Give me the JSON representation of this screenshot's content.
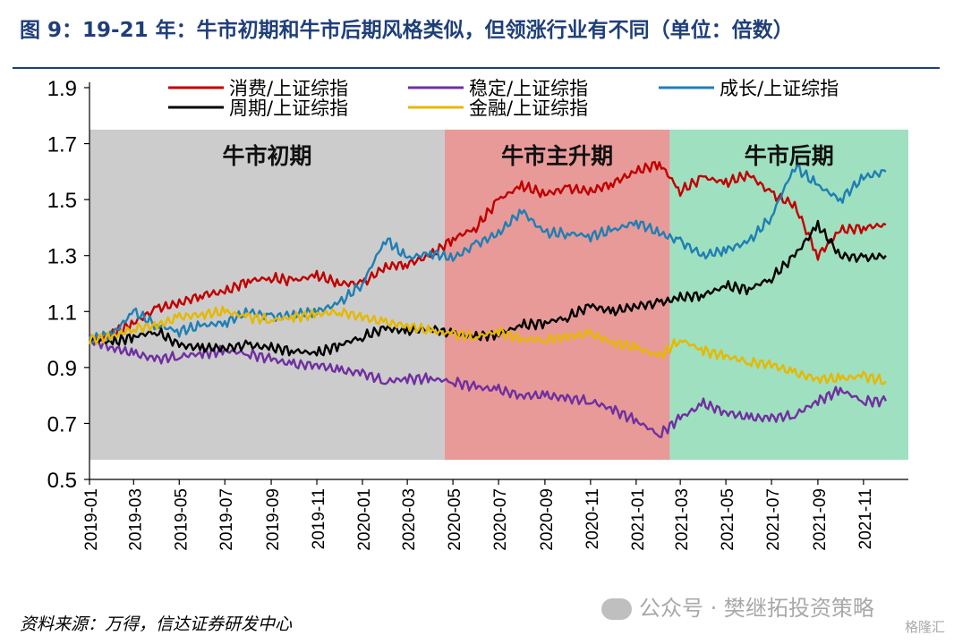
{
  "header": {
    "title": "图 9：19-21 年：牛市初期和牛市后期风格类似，但领涨行业有不同（单位：倍数）"
  },
  "footer": {
    "source": "资料来源：万得，信达证券研发中心",
    "watermark": "公众号 · 樊继拓投资策略",
    "corner_mark": "格隆汇"
  },
  "chart_data": {
    "type": "line",
    "title": "图 9：19-21 年：牛市初期和牛市后期风格类似，但领涨行业有不同（单位：倍数）",
    "xlabel": "",
    "ylabel": "",
    "x_range": [
      "2019-01",
      "2021-12"
    ],
    "ylim": [
      0.5,
      1.9
    ],
    "yticks": [
      "1.9",
      "1.7",
      "1.5",
      "1.3",
      "1.1",
      "0.9",
      "0.7",
      "0.5"
    ],
    "xticks": [
      "2019-01",
      "2019-03",
      "2019-05",
      "2019-07",
      "2019-09",
      "2019-11",
      "2020-01",
      "2020-03",
      "2020-05",
      "2020-07",
      "2020-09",
      "2020-11",
      "2021-01",
      "2021-03",
      "2021-05",
      "2021-07",
      "2021-09",
      "2021-11"
    ],
    "grid": false,
    "legend_position": "top",
    "phases": [
      {
        "label": "牛市初期",
        "start": "2019-01",
        "end": "2020-04-20",
        "ymin": 0.57,
        "ymax": 1.75,
        "color": "#cccccc"
      },
      {
        "label": "牛市主升期",
        "start": "2020-04-20",
        "end": "2021-02-15",
        "ymin": 0.57,
        "ymax": 1.75,
        "color": "#e89a98"
      },
      {
        "label": "牛市后期",
        "start": "2021-02-15",
        "end": "2021-12-31",
        "ymin": 0.57,
        "ymax": 1.75,
        "color": "#9fe0c0"
      }
    ],
    "series": [
      {
        "name": "消费/上证综指",
        "color": "#c00000",
        "x": [
          "2019-01",
          "2019-02",
          "2019-03",
          "2019-04",
          "2019-05",
          "2019-06",
          "2019-07",
          "2019-08",
          "2019-09",
          "2019-10",
          "2019-11",
          "2019-12",
          "2020-01",
          "2020-02",
          "2020-03",
          "2020-04",
          "2020-05",
          "2020-06",
          "2020-07",
          "2020-08",
          "2020-09",
          "2020-10",
          "2020-11",
          "2020-12",
          "2021-01",
          "2021-02",
          "2021-03",
          "2021-04",
          "2021-05",
          "2021-06",
          "2021-07",
          "2021-08",
          "2021-09",
          "2021-10",
          "2021-11",
          "2021-12"
        ],
        "values": [
          1.0,
          1.02,
          1.06,
          1.11,
          1.13,
          1.16,
          1.17,
          1.21,
          1.22,
          1.21,
          1.23,
          1.2,
          1.2,
          1.26,
          1.27,
          1.3,
          1.36,
          1.4,
          1.5,
          1.55,
          1.52,
          1.54,
          1.53,
          1.56,
          1.6,
          1.63,
          1.53,
          1.58,
          1.56,
          1.59,
          1.52,
          1.48,
          1.3,
          1.39,
          1.4,
          1.41
        ]
      },
      {
        "name": "稳定/上证综指",
        "color": "#7030a0",
        "x": [
          "2019-01",
          "2019-02",
          "2019-03",
          "2019-04",
          "2019-05",
          "2019-06",
          "2019-07",
          "2019-08",
          "2019-09",
          "2019-10",
          "2019-11",
          "2019-12",
          "2020-01",
          "2020-02",
          "2020-03",
          "2020-04",
          "2020-05",
          "2020-06",
          "2020-07",
          "2020-08",
          "2020-09",
          "2020-10",
          "2020-11",
          "2020-12",
          "2021-01",
          "2021-02",
          "2021-03",
          "2021-04",
          "2021-05",
          "2021-06",
          "2021-07",
          "2021-08",
          "2021-09",
          "2021-10",
          "2021-11",
          "2021-12"
        ],
        "values": [
          1.0,
          0.97,
          0.95,
          0.93,
          0.94,
          0.95,
          0.96,
          0.95,
          0.93,
          0.91,
          0.91,
          0.89,
          0.88,
          0.85,
          0.86,
          0.86,
          0.85,
          0.83,
          0.82,
          0.8,
          0.8,
          0.79,
          0.78,
          0.75,
          0.71,
          0.66,
          0.72,
          0.77,
          0.74,
          0.72,
          0.72,
          0.73,
          0.78,
          0.82,
          0.78,
          0.78
        ]
      },
      {
        "name": "成长/上证综指",
        "color": "#1f7fb4",
        "x": [
          "2019-01",
          "2019-02",
          "2019-03",
          "2019-04",
          "2019-05",
          "2019-06",
          "2019-07",
          "2019-08",
          "2019-09",
          "2019-10",
          "2019-11",
          "2019-12",
          "2020-01",
          "2020-02",
          "2020-03",
          "2020-04",
          "2020-05",
          "2020-06",
          "2020-07",
          "2020-08",
          "2020-09",
          "2020-10",
          "2020-11",
          "2020-12",
          "2021-01",
          "2021-02",
          "2021-03",
          "2021-04",
          "2021-05",
          "2021-06",
          "2021-07",
          "2021-08",
          "2021-09",
          "2021-10",
          "2021-11",
          "2021-12"
        ],
        "values": [
          1.0,
          1.02,
          1.1,
          1.05,
          1.03,
          1.05,
          1.06,
          1.1,
          1.08,
          1.09,
          1.1,
          1.13,
          1.2,
          1.36,
          1.29,
          1.31,
          1.29,
          1.34,
          1.38,
          1.46,
          1.38,
          1.38,
          1.37,
          1.39,
          1.42,
          1.38,
          1.35,
          1.3,
          1.32,
          1.35,
          1.44,
          1.62,
          1.55,
          1.5,
          1.58,
          1.6
        ]
      },
      {
        "name": "周期/上证综指",
        "color": "#000000",
        "x": [
          "2019-01",
          "2019-02",
          "2019-03",
          "2019-04",
          "2019-05",
          "2019-06",
          "2019-07",
          "2019-08",
          "2019-09",
          "2019-10",
          "2019-11",
          "2019-12",
          "2020-01",
          "2020-02",
          "2020-03",
          "2020-04",
          "2020-05",
          "2020-06",
          "2020-07",
          "2020-08",
          "2020-09",
          "2020-10",
          "2020-11",
          "2020-12",
          "2021-01",
          "2021-02",
          "2021-03",
          "2021-04",
          "2021-05",
          "2021-06",
          "2021-07",
          "2021-08",
          "2021-09",
          "2021-10",
          "2021-11",
          "2021-12"
        ],
        "values": [
          1.0,
          0.99,
          1.01,
          1.03,
          0.98,
          0.97,
          0.97,
          0.98,
          0.97,
          0.96,
          0.95,
          0.98,
          1.01,
          1.04,
          1.03,
          1.04,
          1.02,
          1.01,
          1.02,
          1.05,
          1.06,
          1.08,
          1.12,
          1.1,
          1.12,
          1.13,
          1.15,
          1.16,
          1.19,
          1.18,
          1.22,
          1.3,
          1.41,
          1.3,
          1.29,
          1.3
        ]
      },
      {
        "name": "金融/上证综指",
        "color": "#e6b800",
        "x": [
          "2019-01",
          "2019-02",
          "2019-03",
          "2019-04",
          "2019-05",
          "2019-06",
          "2019-07",
          "2019-08",
          "2019-09",
          "2019-10",
          "2019-11",
          "2019-12",
          "2020-01",
          "2020-02",
          "2020-03",
          "2020-04",
          "2020-05",
          "2020-06",
          "2020-07",
          "2020-08",
          "2020-09",
          "2020-10",
          "2020-11",
          "2020-12",
          "2021-01",
          "2021-02",
          "2021-03",
          "2021-04",
          "2021-05",
          "2021-06",
          "2021-07",
          "2021-08",
          "2021-09",
          "2021-10",
          "2021-11",
          "2021-12"
        ],
        "values": [
          1.0,
          1.01,
          1.04,
          1.05,
          1.08,
          1.09,
          1.1,
          1.08,
          1.07,
          1.08,
          1.09,
          1.1,
          1.08,
          1.06,
          1.05,
          1.03,
          1.02,
          1.01,
          1.03,
          1.0,
          1.0,
          1.01,
          1.02,
          0.99,
          0.97,
          0.94,
          1.0,
          0.96,
          0.94,
          0.92,
          0.91,
          0.88,
          0.86,
          0.86,
          0.87,
          0.85
        ]
      }
    ]
  }
}
